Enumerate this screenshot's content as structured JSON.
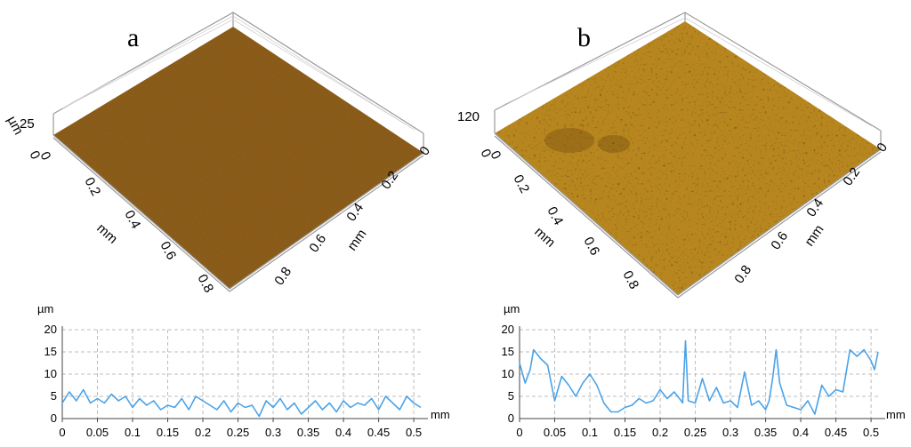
{
  "chart_data": [
    {
      "id": "a",
      "type": "surface3d",
      "panel_label": "a",
      "z_unit": "µm",
      "z_ticks": [
        "25",
        "0"
      ],
      "x_label": "mm",
      "x_ticks": [
        "0",
        "0.2",
        "0.4",
        "0.6",
        "0.8"
      ],
      "y_label": "mm",
      "y_ticks": [
        "0",
        "0.2",
        "0.4",
        "0.6",
        "0.8"
      ],
      "colors": {
        "base": "#8a5a18",
        "light": "#b8842c",
        "dark": "#3a2006"
      }
    },
    {
      "id": "b",
      "type": "surface3d",
      "panel_label": "b",
      "z_ticks": [
        "120",
        "0"
      ],
      "x_label": "mm",
      "x_ticks": [
        "0",
        "0.2",
        "0.4",
        "0.6",
        "0.8"
      ],
      "y_label": "mm",
      "y_ticks": [
        "0",
        "0.2",
        "0.4",
        "0.6",
        "0.8"
      ],
      "colors": {
        "base": "#b8861e",
        "light": "#d6a43a",
        "dark": "#2c1804"
      }
    },
    {
      "id": "profile-a",
      "type": "line",
      "ylabel": "µm",
      "xlabel": "mm",
      "ylim": [
        0,
        20
      ],
      "xlim": [
        0,
        0.51
      ],
      "y_ticks": [
        0,
        5,
        10,
        15,
        20
      ],
      "x_ticks": [
        "0",
        "0.05",
        "0.1",
        "0.15",
        "0.2",
        "0.25",
        "0.3",
        "0.35",
        "0.4",
        "0.45",
        "0.5"
      ],
      "color": "#4aa3e8",
      "x": [
        0,
        0.01,
        0.02,
        0.03,
        0.04,
        0.05,
        0.06,
        0.07,
        0.08,
        0.09,
        0.1,
        0.11,
        0.12,
        0.13,
        0.14,
        0.15,
        0.16,
        0.17,
        0.18,
        0.19,
        0.2,
        0.21,
        0.22,
        0.23,
        0.24,
        0.25,
        0.26,
        0.27,
        0.28,
        0.29,
        0.3,
        0.31,
        0.32,
        0.33,
        0.34,
        0.35,
        0.36,
        0.37,
        0.38,
        0.39,
        0.4,
        0.41,
        0.42,
        0.43,
        0.44,
        0.45,
        0.46,
        0.47,
        0.48,
        0.49,
        0.5,
        0.51
      ],
      "y": [
        3.5,
        6,
        4,
        6.5,
        3.5,
        4.5,
        3.5,
        5.5,
        4,
        5,
        2.5,
        4.5,
        3,
        4,
        2,
        3,
        2.5,
        4.5,
        2,
        5,
        4,
        3,
        2,
        4,
        1.5,
        3.5,
        2.5,
        3,
        0.5,
        4,
        2.5,
        4.5,
        2,
        3.5,
        1,
        2.5,
        4,
        2,
        3.5,
        1.5,
        4,
        2.5,
        3.5,
        3,
        4.5,
        2,
        5,
        3.5,
        2,
        5,
        3.5,
        2.5
      ]
    },
    {
      "id": "profile-b",
      "type": "line",
      "ylabel": "µm",
      "xlabel": "mm",
      "ylim": [
        0,
        20
      ],
      "xlim": [
        0,
        0.51
      ],
      "y_ticks": [
        0,
        5,
        10,
        15,
        20
      ],
      "x_ticks": [
        "0",
        "0.05",
        "0.1",
        "0.15",
        "0.2",
        "0.25",
        "0.3",
        "0.35",
        "0.4",
        "0.45",
        "0.5"
      ],
      "color": "#4aa3e8",
      "x": [
        0,
        0.008,
        0.015,
        0.02,
        0.03,
        0.04,
        0.05,
        0.06,
        0.07,
        0.08,
        0.09,
        0.1,
        0.11,
        0.12,
        0.13,
        0.14,
        0.15,
        0.16,
        0.17,
        0.18,
        0.19,
        0.2,
        0.21,
        0.22,
        0.23,
        0.232,
        0.236,
        0.24,
        0.25,
        0.26,
        0.27,
        0.28,
        0.29,
        0.3,
        0.31,
        0.32,
        0.33,
        0.34,
        0.35,
        0.355,
        0.36,
        0.365,
        0.37,
        0.38,
        0.39,
        0.4,
        0.41,
        0.42,
        0.43,
        0.44,
        0.45,
        0.46,
        0.47,
        0.48,
        0.49,
        0.5,
        0.505,
        0.51
      ],
      "y": [
        12.5,
        8,
        11,
        15.5,
        13.5,
        12,
        4,
        9.5,
        7.5,
        5,
        8,
        10,
        7.5,
        3.5,
        1.5,
        1.5,
        2.5,
        3,
        4.5,
        3.5,
        4,
        6.5,
        4.5,
        6,
        4,
        3.5,
        17.5,
        4,
        3.5,
        9,
        4,
        7,
        3.5,
        4,
        2.5,
        10.5,
        3,
        4,
        2,
        4,
        9,
        15.5,
        8,
        3,
        2.5,
        2,
        4,
        1,
        7.5,
        5,
        6.5,
        6,
        15.5,
        14,
        15.5,
        13,
        11,
        15
      ]
    }
  ]
}
